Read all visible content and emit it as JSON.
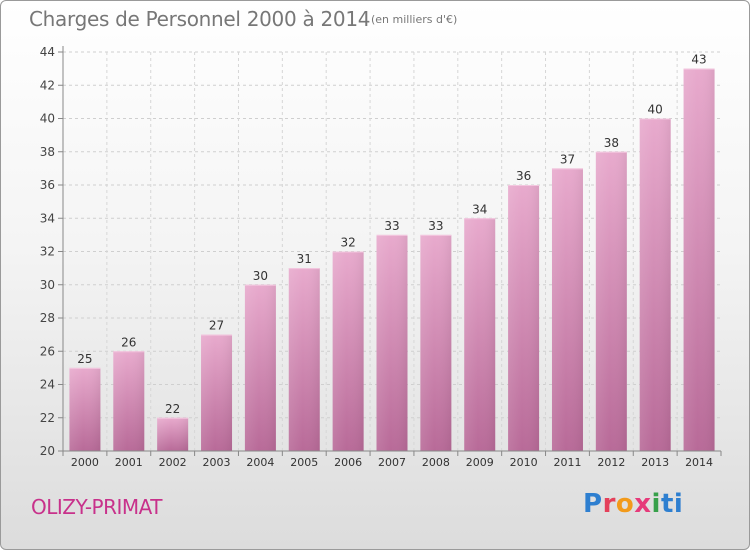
{
  "chart_data": {
    "type": "bar",
    "title": "Charges de Personnel 2000 à 2014",
    "subtitle": "(en milliers d'€)",
    "categories": [
      "2000",
      "2001",
      "2002",
      "2003",
      "2004",
      "2005",
      "2006",
      "2007",
      "2008",
      "2009",
      "2010",
      "2011",
      "2012",
      "2013",
      "2014"
    ],
    "values": [
      25,
      26,
      22,
      27,
      30,
      31,
      32,
      33,
      33,
      34,
      36,
      37,
      38,
      40,
      43
    ],
    "ylim": [
      20,
      44
    ],
    "yticks": [
      20,
      22,
      24,
      26,
      28,
      30,
      32,
      34,
      36,
      38,
      40,
      42,
      44
    ],
    "xlabel": "",
    "ylabel": "",
    "grid": true,
    "bar_color": "#d17aa8"
  },
  "footer": {
    "town": "OLIZY-PRIMAT",
    "logo_letters": [
      "P",
      "r",
      "o",
      "x",
      "i",
      "ti"
    ]
  },
  "colors": {
    "town": "#c8318b",
    "bar_light": "#e7a9cb",
    "bar_dark": "#b96a98"
  }
}
